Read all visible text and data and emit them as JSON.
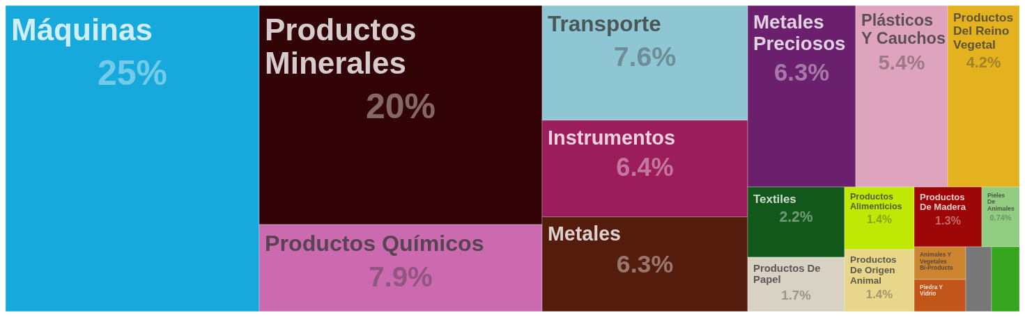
{
  "chart_data": {
    "type": "other",
    "categories": [
      "Máquinas",
      "Productos Minerales",
      "Productos Químicos",
      "Transporte",
      "Instrumentos",
      "Metales",
      "Metales Preciosos",
      "Plásticos Y Cauchos",
      "Productos Del Reino Vegetal",
      "Textiles",
      "Productos De Papel",
      "Productos Alimenticios",
      "Productos De Origen Animal",
      "Productos De Madera",
      "Pieles De Animales",
      "Animales Y Vegetales Bi-Products",
      "Piedra Y Vidrio",
      null,
      null
    ],
    "values": [
      25,
      20,
      7.9,
      7.6,
      6.4,
      6.3,
      6.3,
      5.4,
      4.2,
      2.2,
      1.7,
      1.4,
      1.4,
      1.3,
      0.74,
      null,
      null,
      null,
      null
    ],
    "value_labels": [
      "25%",
      "20%",
      "7.9%",
      "7.6%",
      "6.4%",
      "6.3%",
      "6.3%",
      "5.4%",
      "4.2%",
      "2.2%",
      "1.7%",
      "1.4%",
      "1.4%",
      "1.3%",
      "0.74%",
      null,
      null,
      null,
      null
    ],
    "colors": [
      "#17a8dc",
      "#320306",
      "#cb6aaf",
      "#8fc6d4",
      "#9c1d5c",
      "#541c0c",
      "#6b206e",
      "#dfa4bd",
      "#e4b21f",
      "#11581a",
      "#d7d2c3",
      "#bfe805",
      "#e8d68a",
      "#9e0707",
      "#92cc80",
      "#cd8431",
      "#c2561a",
      "#777777",
      "#35a520"
    ]
  }
}
